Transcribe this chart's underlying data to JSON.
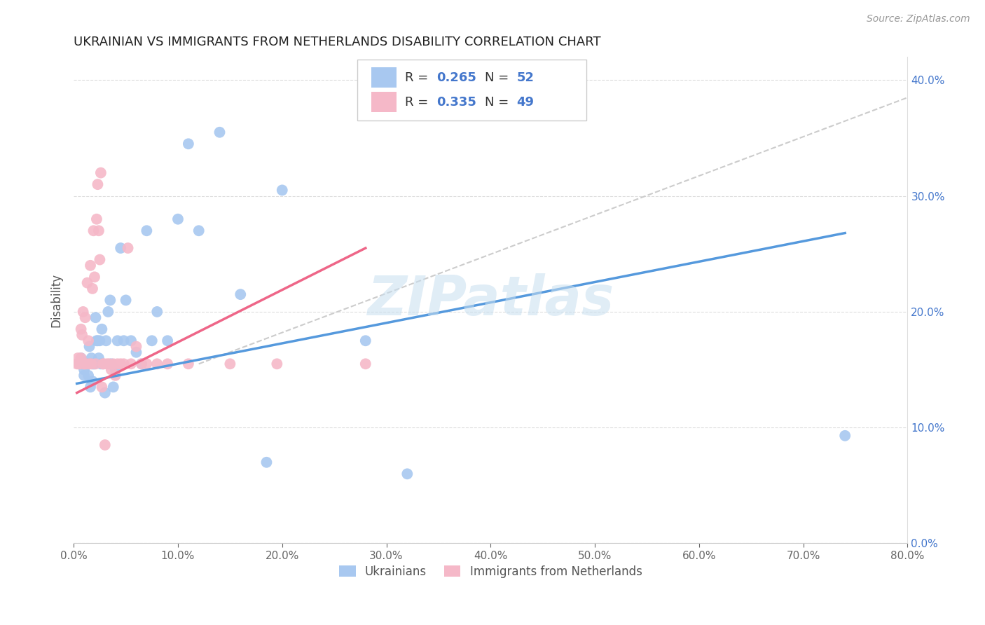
{
  "title": "UKRAINIAN VS IMMIGRANTS FROM NETHERLANDS DISABILITY CORRELATION CHART",
  "source": "Source: ZipAtlas.com",
  "ylabel": "Disability",
  "xlim": [
    0.0,
    0.8
  ],
  "ylim": [
    0.0,
    0.42
  ],
  "x_tick_vals": [
    0.0,
    0.1,
    0.2,
    0.3,
    0.4,
    0.5,
    0.6,
    0.7,
    0.8
  ],
  "x_tick_labels": [
    "0.0%",
    "10.0%",
    "20.0%",
    "30.0%",
    "40.0%",
    "50.0%",
    "60.0%",
    "70.0%",
    "80.0%"
  ],
  "y_tick_vals": [
    0.0,
    0.1,
    0.2,
    0.3,
    0.4
  ],
  "y_tick_labels": [
    "0.0%",
    "10.0%",
    "20.0%",
    "30.0%",
    "40.0%"
  ],
  "legend_r1": "0.265",
  "legend_n1": "52",
  "legend_r2": "0.335",
  "legend_n2": "49",
  "legend_label1": "Ukrainians",
  "legend_label2": "Immigrants from Netherlands",
  "blue_color": "#a8c8f0",
  "pink_color": "#f5b8c8",
  "blue_line_color": "#5599dd",
  "pink_line_color": "#ee6688",
  "dashed_line_color": "#cccccc",
  "text_color": "#4477cc",
  "watermark": "ZIPatlas",
  "blue_x": [
    0.005,
    0.007,
    0.008,
    0.01,
    0.01,
    0.012,
    0.013,
    0.014,
    0.015,
    0.015,
    0.016,
    0.017,
    0.018,
    0.018,
    0.019,
    0.02,
    0.021,
    0.022,
    0.023,
    0.024,
    0.025,
    0.026,
    0.027,
    0.028,
    0.03,
    0.031,
    0.033,
    0.035,
    0.036,
    0.038,
    0.04,
    0.042,
    0.045,
    0.048,
    0.05,
    0.055,
    0.06,
    0.065,
    0.07,
    0.075,
    0.08,
    0.09,
    0.1,
    0.11,
    0.12,
    0.14,
    0.16,
    0.185,
    0.2,
    0.28,
    0.32,
    0.74
  ],
  "blue_y": [
    0.155,
    0.16,
    0.155,
    0.15,
    0.145,
    0.155,
    0.155,
    0.145,
    0.17,
    0.155,
    0.135,
    0.16,
    0.155,
    0.14,
    0.155,
    0.155,
    0.195,
    0.175,
    0.175,
    0.16,
    0.175,
    0.155,
    0.185,
    0.155,
    0.13,
    0.175,
    0.2,
    0.21,
    0.155,
    0.135,
    0.15,
    0.175,
    0.255,
    0.175,
    0.21,
    0.175,
    0.165,
    0.155,
    0.27,
    0.175,
    0.2,
    0.175,
    0.28,
    0.345,
    0.27,
    0.355,
    0.215,
    0.07,
    0.305,
    0.175,
    0.06,
    0.093
  ],
  "pink_x": [
    0.003,
    0.004,
    0.005,
    0.006,
    0.007,
    0.007,
    0.008,
    0.009,
    0.01,
    0.01,
    0.011,
    0.012,
    0.013,
    0.014,
    0.015,
    0.016,
    0.017,
    0.018,
    0.019,
    0.02,
    0.021,
    0.022,
    0.023,
    0.024,
    0.025,
    0.026,
    0.027,
    0.028,
    0.029,
    0.03,
    0.032,
    0.034,
    0.036,
    0.038,
    0.04,
    0.042,
    0.045,
    0.048,
    0.052,
    0.055,
    0.06,
    0.065,
    0.07,
    0.08,
    0.09,
    0.11,
    0.15,
    0.195,
    0.28
  ],
  "pink_y": [
    0.155,
    0.16,
    0.155,
    0.155,
    0.185,
    0.16,
    0.18,
    0.2,
    0.155,
    0.155,
    0.195,
    0.155,
    0.225,
    0.175,
    0.155,
    0.24,
    0.155,
    0.22,
    0.27,
    0.23,
    0.155,
    0.28,
    0.31,
    0.27,
    0.245,
    0.32,
    0.135,
    0.155,
    0.155,
    0.085,
    0.155,
    0.155,
    0.15,
    0.155,
    0.145,
    0.155,
    0.155,
    0.155,
    0.255,
    0.155,
    0.17,
    0.155,
    0.155,
    0.155,
    0.155,
    0.155,
    0.155,
    0.155,
    0.155
  ],
  "blue_line_x": [
    0.003,
    0.74
  ],
  "blue_line_y": [
    0.138,
    0.268
  ],
  "pink_line_x": [
    0.003,
    0.28
  ],
  "pink_line_y": [
    0.13,
    0.255
  ],
  "dash_line_x": [
    0.12,
    0.8
  ],
  "dash_line_y": [
    0.155,
    0.385
  ]
}
